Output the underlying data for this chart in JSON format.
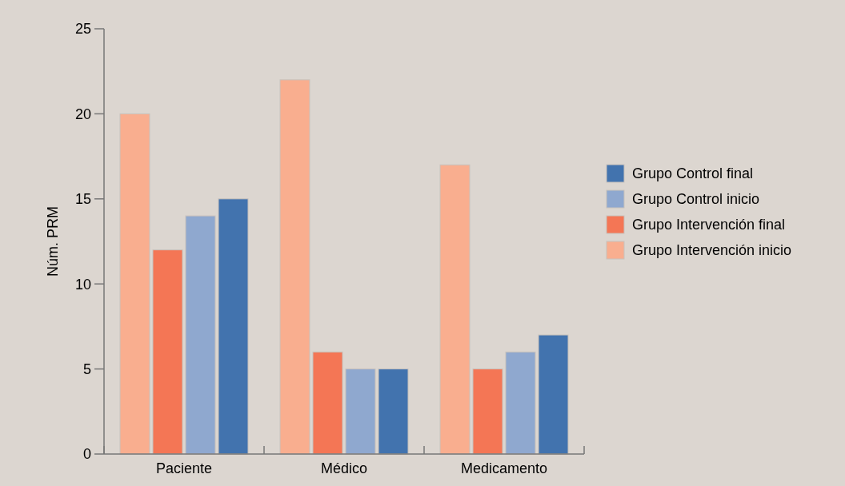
{
  "chart_data": {
    "type": "bar",
    "ylabel": "Núm. PRM",
    "categories": [
      "Paciente",
      "Médico",
      "Medicamento"
    ],
    "series": [
      {
        "name": "Grupo Intervención inicio",
        "color": "#f9ae8f",
        "values": [
          20,
          22,
          17
        ]
      },
      {
        "name": "Grupo Intervención final",
        "color": "#f47655",
        "values": [
          12,
          6,
          5
        ]
      },
      {
        "name": "Grupo Control inicio",
        "color": "#8fa8cf",
        "values": [
          14,
          5,
          6
        ]
      },
      {
        "name": "Grupo Control final",
        "color": "#4273ae",
        "values": [
          15,
          5,
          7
        ]
      }
    ],
    "ylim": [
      0,
      25
    ],
    "yticks": [
      0,
      5,
      10,
      15,
      20,
      25
    ],
    "grid": false,
    "legend": "right"
  }
}
